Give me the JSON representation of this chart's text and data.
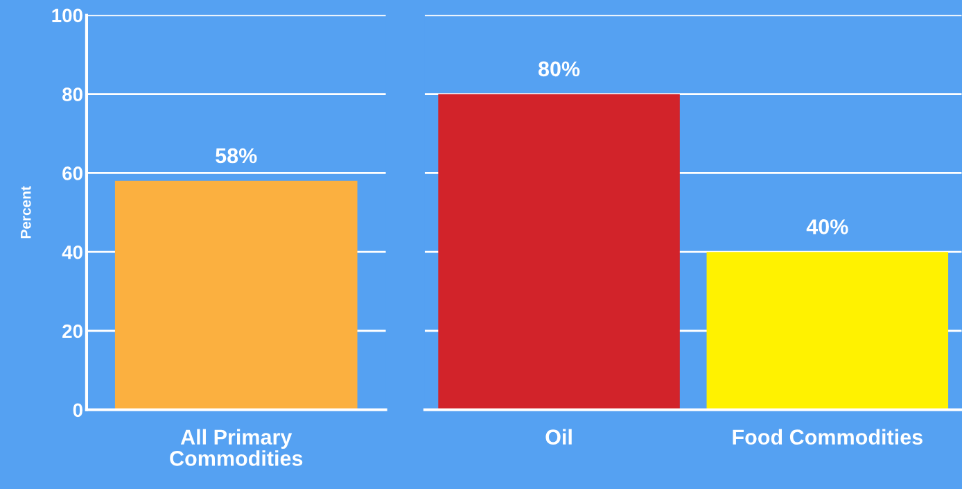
{
  "chart_data": [
    {
      "type": "bar",
      "ylabel": "Percent",
      "categories": [
        "All Primary\nCommodities"
      ],
      "colors": [
        "#fbb040"
      ],
      "values": [
        58
      ],
      "value_labels": [
        "58%"
      ],
      "ylim": [
        0,
        100
      ],
      "yticks": [
        0,
        20,
        40,
        60,
        80,
        100
      ],
      "grid": "y"
    },
    {
      "type": "bar",
      "categories": [
        "Oil",
        "Food Commodities"
      ],
      "colors": [
        "#d2232a",
        "#fff200"
      ],
      "values": [
        80,
        40
      ],
      "value_labels": [
        "80%",
        "40%"
      ],
      "ylim": [
        0,
        100
      ],
      "yticks": [
        0,
        20,
        40,
        60,
        80,
        100
      ],
      "grid": "y",
      "tick_labels": "x"
    }
  ]
}
